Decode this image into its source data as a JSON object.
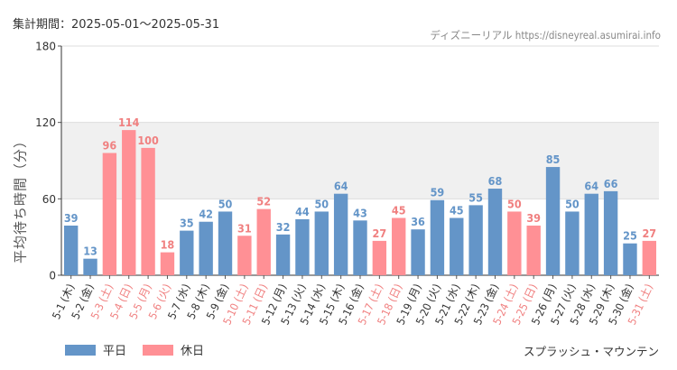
{
  "header": {
    "period_text": "集計期間：2025-05-01～2025-05-31",
    "credit_text": "ディズニーリアル https://disneyreal.asumirai.info"
  },
  "attraction_text": "スプラッシュ・マウンテン",
  "colors": {
    "weekday": "#6495c8",
    "holiday": "#ff9095",
    "holiday_text": "#f08080",
    "weekday_text": "#333333",
    "band": "#f0f0f0",
    "grid": "#dddddd"
  },
  "chart_data": {
    "type": "bar",
    "ylabel": "平均待ち時間（分）",
    "ylim": [
      0,
      180
    ],
    "yticks": [
      0,
      60,
      120,
      180
    ],
    "band_range": [
      60,
      120
    ],
    "legend": [
      {
        "name": "平日",
        "color": "#6495c8"
      },
      {
        "name": "休日",
        "color": "#ff9095"
      }
    ],
    "categories": [
      "5-1 (木)",
      "5-2 (金)",
      "5-3 (土)",
      "5-4 (日)",
      "5-5 (月)",
      "5-6 (火)",
      "5-7 (水)",
      "5-8 (木)",
      "5-9 (金)",
      "5-10 (土)",
      "5-11 (日)",
      "5-12 (月)",
      "5-13 (火)",
      "5-14 (水)",
      "5-15 (木)",
      "5-16 (金)",
      "5-17 (土)",
      "5-18 (日)",
      "5-19 (月)",
      "5-20 (火)",
      "5-21 (水)",
      "5-22 (木)",
      "5-23 (金)",
      "5-24 (土)",
      "5-25 (日)",
      "5-26 (月)",
      "5-27 (火)",
      "5-28 (水)",
      "5-29 (木)",
      "5-30 (金)",
      "5-31 (土)"
    ],
    "values": [
      39,
      13,
      96,
      114,
      100,
      18,
      35,
      42,
      50,
      31,
      52,
      32,
      44,
      50,
      64,
      43,
      27,
      45,
      36,
      59,
      45,
      55,
      68,
      50,
      39,
      85,
      50,
      64,
      66,
      25,
      27
    ],
    "day_type": [
      "平日",
      "平日",
      "休日",
      "休日",
      "休日",
      "休日",
      "平日",
      "平日",
      "平日",
      "休日",
      "休日",
      "平日",
      "平日",
      "平日",
      "平日",
      "平日",
      "休日",
      "休日",
      "平日",
      "平日",
      "平日",
      "平日",
      "平日",
      "休日",
      "休日",
      "平日",
      "平日",
      "平日",
      "平日",
      "平日",
      "休日"
    ]
  }
}
